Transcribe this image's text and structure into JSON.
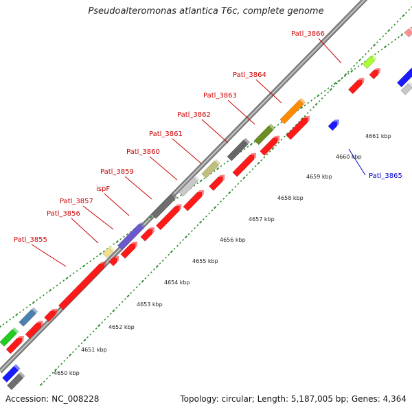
{
  "map": {
    "title": "Pseudoalteromonas atlantica T6c, complete genome",
    "accession": "Accession: NC_008228",
    "summary": "Topology: circular; Length: 5,187,005 bp; Genes: 4,364",
    "backbone_color": "#9a9a9a",
    "label_red": "#cc0000",
    "label_blue": "#0000cc",
    "tick_color": "#2e8b2e"
  },
  "scale_ticks": [
    "4650 kbp",
    "4651 kbp",
    "4652 kbp",
    "4653 kbp",
    "4654 kbp",
    "4655 kbp",
    "4656 kbp",
    "4657 kbp",
    "4658 kbp",
    "4659 kbp",
    "4660 kbp",
    "4661 kbp"
  ],
  "gene_labels": [
    {
      "name": "Patl_3855",
      "color": "#cc0000"
    },
    {
      "name": "Patl_3856",
      "color": "#cc0000"
    },
    {
      "name": "Patl_3857",
      "color": "#cc0000"
    },
    {
      "name": "ispF",
      "color": "#cc0000"
    },
    {
      "name": "Patl_3859",
      "color": "#cc0000"
    },
    {
      "name": "Patl_3860",
      "color": "#cc0000"
    },
    {
      "name": "Patl_3861",
      "color": "#cc0000"
    },
    {
      "name": "Patl_3862",
      "color": "#cc0000"
    },
    {
      "name": "Patl_3863",
      "color": "#cc0000"
    },
    {
      "name": "Patl_3864",
      "color": "#cc0000"
    },
    {
      "name": "Patl_3866",
      "color": "#cc0000"
    },
    {
      "name": "Patl_3865",
      "color": "#0000cc"
    }
  ]
}
